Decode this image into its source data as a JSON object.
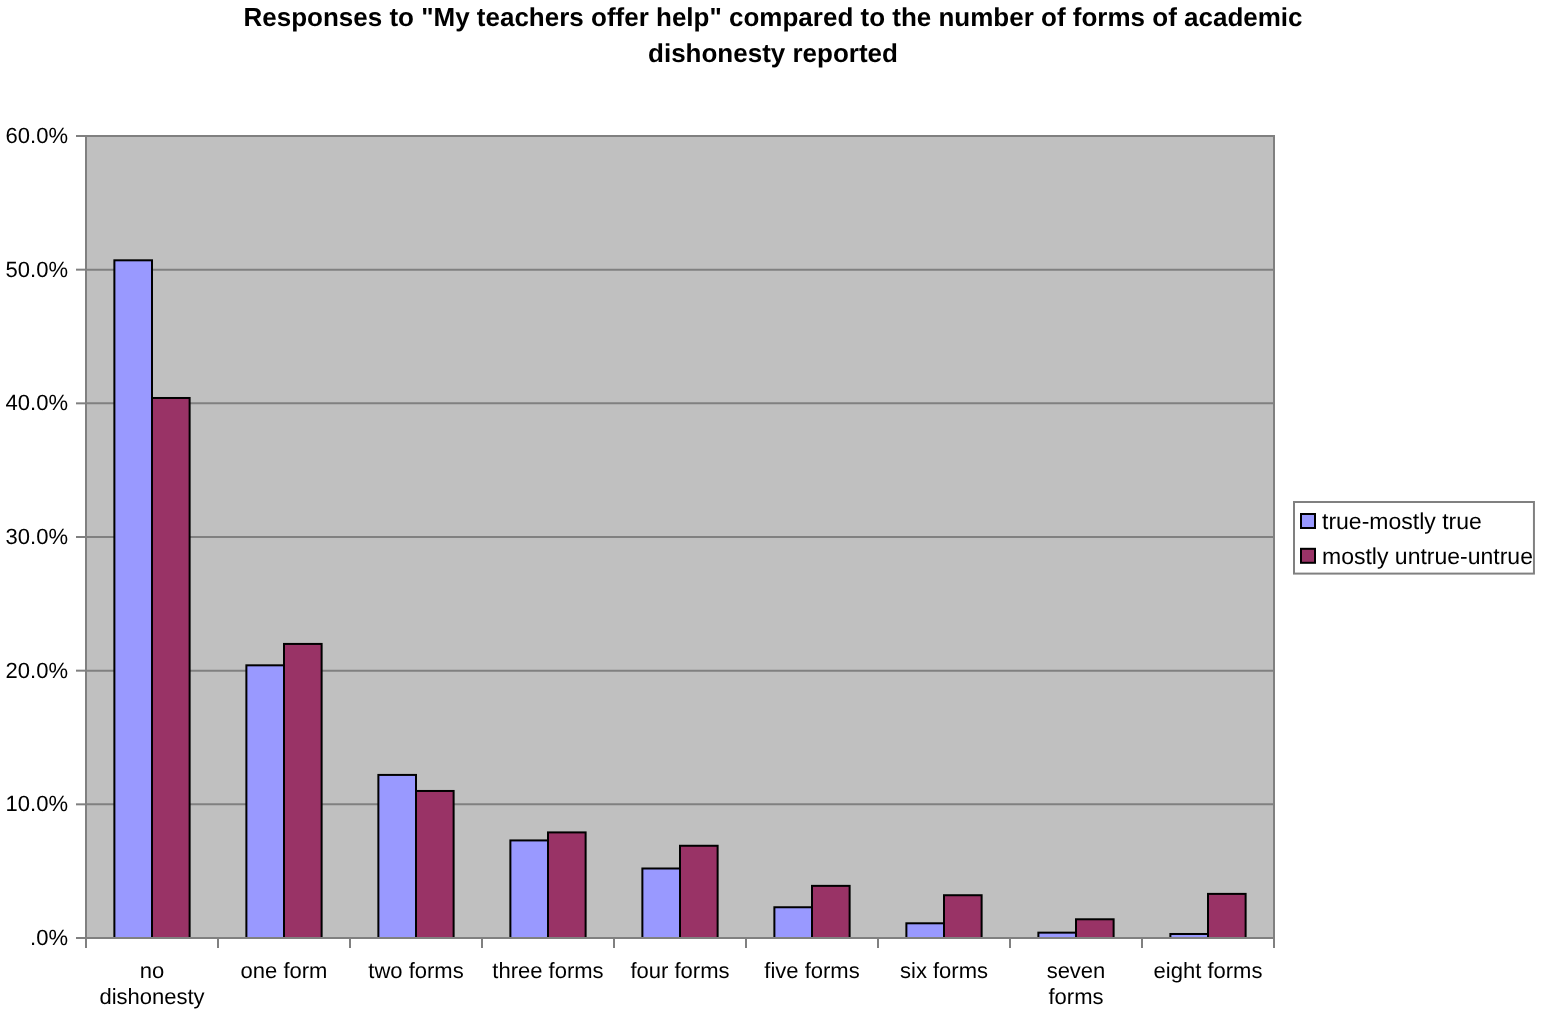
{
  "chart_data": {
    "type": "bar",
    "title": "Responses to \"My teachers offer help\" compared to the number of forms of academic dishonesty reported",
    "categories": [
      "no dishonesty",
      "one form",
      "two forms",
      "three forms",
      "four forms",
      "five forms",
      "six forms",
      "seven forms",
      "eight forms"
    ],
    "series": [
      {
        "name": "true-mostly true",
        "color": "#9999ff",
        "values": [
          50.7,
          20.4,
          12.2,
          7.3,
          5.2,
          2.3,
          1.1,
          0.4,
          0.3
        ]
      },
      {
        "name": "mostly untrue-untrue",
        "color": "#993366",
        "values": [
          40.4,
          22.0,
          11.0,
          7.9,
          6.9,
          3.9,
          3.2,
          1.4,
          3.3
        ]
      }
    ],
    "ylim": [
      0,
      60
    ],
    "yticks": [
      {
        "value": 0,
        "label": ".0%"
      },
      {
        "value": 10,
        "label": "10.0%"
      },
      {
        "value": 20,
        "label": "20.0%"
      },
      {
        "value": 30,
        "label": "30.0%"
      },
      {
        "value": 40,
        "label": "40.0%"
      },
      {
        "value": 50,
        "label": "50.0%"
      },
      {
        "value": 60,
        "label": "60.0%"
      }
    ],
    "grid": "y",
    "legend": "right"
  }
}
